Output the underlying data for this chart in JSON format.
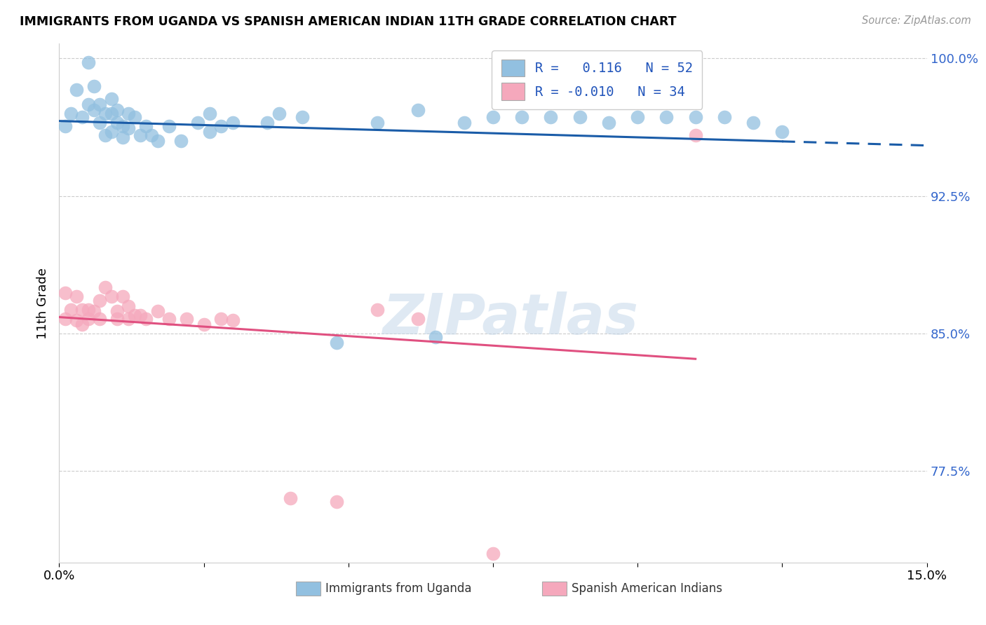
{
  "title": "IMMIGRANTS FROM UGANDA VS SPANISH AMERICAN INDIAN 11TH GRADE CORRELATION CHART",
  "source": "Source: ZipAtlas.com",
  "ylabel": "11th Grade",
  "xmin": 0.0,
  "xmax": 0.15,
  "ymin": 0.725,
  "ymax": 1.008,
  "yticks": [
    0.775,
    0.85,
    0.925,
    1.0
  ],
  "ytick_labels": [
    "77.5%",
    "85.0%",
    "92.5%",
    "100.0%"
  ],
  "blue_color": "#92C0E0",
  "pink_color": "#F5A8BC",
  "blue_line_color": "#1A5CA8",
  "pink_line_color": "#E05080",
  "R_blue": 0.116,
  "N_blue": 52,
  "R_pink": -0.01,
  "N_pink": 34,
  "watermark": "ZIPatlas",
  "legend_label_blue": "Immigrants from Uganda",
  "legend_label_pink": "Spanish American Indians",
  "blue_scatter_x": [
    0.001,
    0.002,
    0.003,
    0.004,
    0.005,
    0.005,
    0.006,
    0.006,
    0.007,
    0.007,
    0.008,
    0.008,
    0.009,
    0.009,
    0.009,
    0.01,
    0.01,
    0.011,
    0.011,
    0.012,
    0.012,
    0.013,
    0.014,
    0.015,
    0.016,
    0.017,
    0.019,
    0.021,
    0.024,
    0.026,
    0.026,
    0.028,
    0.03,
    0.036,
    0.038,
    0.042,
    0.048,
    0.055,
    0.062,
    0.065,
    0.07,
    0.075,
    0.08,
    0.085,
    0.09,
    0.095,
    0.1,
    0.105,
    0.11,
    0.115,
    0.12,
    0.125
  ],
  "blue_scatter_y": [
    0.963,
    0.97,
    0.983,
    0.968,
    0.998,
    0.975,
    0.985,
    0.972,
    0.975,
    0.965,
    0.97,
    0.958,
    0.978,
    0.97,
    0.96,
    0.972,
    0.965,
    0.963,
    0.957,
    0.97,
    0.962,
    0.968,
    0.958,
    0.963,
    0.958,
    0.955,
    0.963,
    0.955,
    0.965,
    0.97,
    0.96,
    0.963,
    0.965,
    0.965,
    0.97,
    0.968,
    0.845,
    0.965,
    0.972,
    0.848,
    0.965,
    0.968,
    0.968,
    0.968,
    0.968,
    0.965,
    0.968,
    0.968,
    0.968,
    0.968,
    0.965,
    0.96
  ],
  "pink_scatter_x": [
    0.001,
    0.001,
    0.002,
    0.003,
    0.003,
    0.004,
    0.004,
    0.005,
    0.005,
    0.006,
    0.007,
    0.007,
    0.008,
    0.009,
    0.01,
    0.01,
    0.011,
    0.012,
    0.012,
    0.013,
    0.014,
    0.015,
    0.017,
    0.019,
    0.022,
    0.025,
    0.028,
    0.03,
    0.04,
    0.048,
    0.055,
    0.062,
    0.075,
    0.11
  ],
  "pink_scatter_y": [
    0.872,
    0.858,
    0.863,
    0.87,
    0.857,
    0.863,
    0.855,
    0.863,
    0.858,
    0.862,
    0.868,
    0.858,
    0.875,
    0.87,
    0.862,
    0.858,
    0.87,
    0.865,
    0.858,
    0.86,
    0.86,
    0.858,
    0.862,
    0.858,
    0.858,
    0.855,
    0.858,
    0.857,
    0.76,
    0.758,
    0.863,
    0.858,
    0.73,
    0.958
  ]
}
